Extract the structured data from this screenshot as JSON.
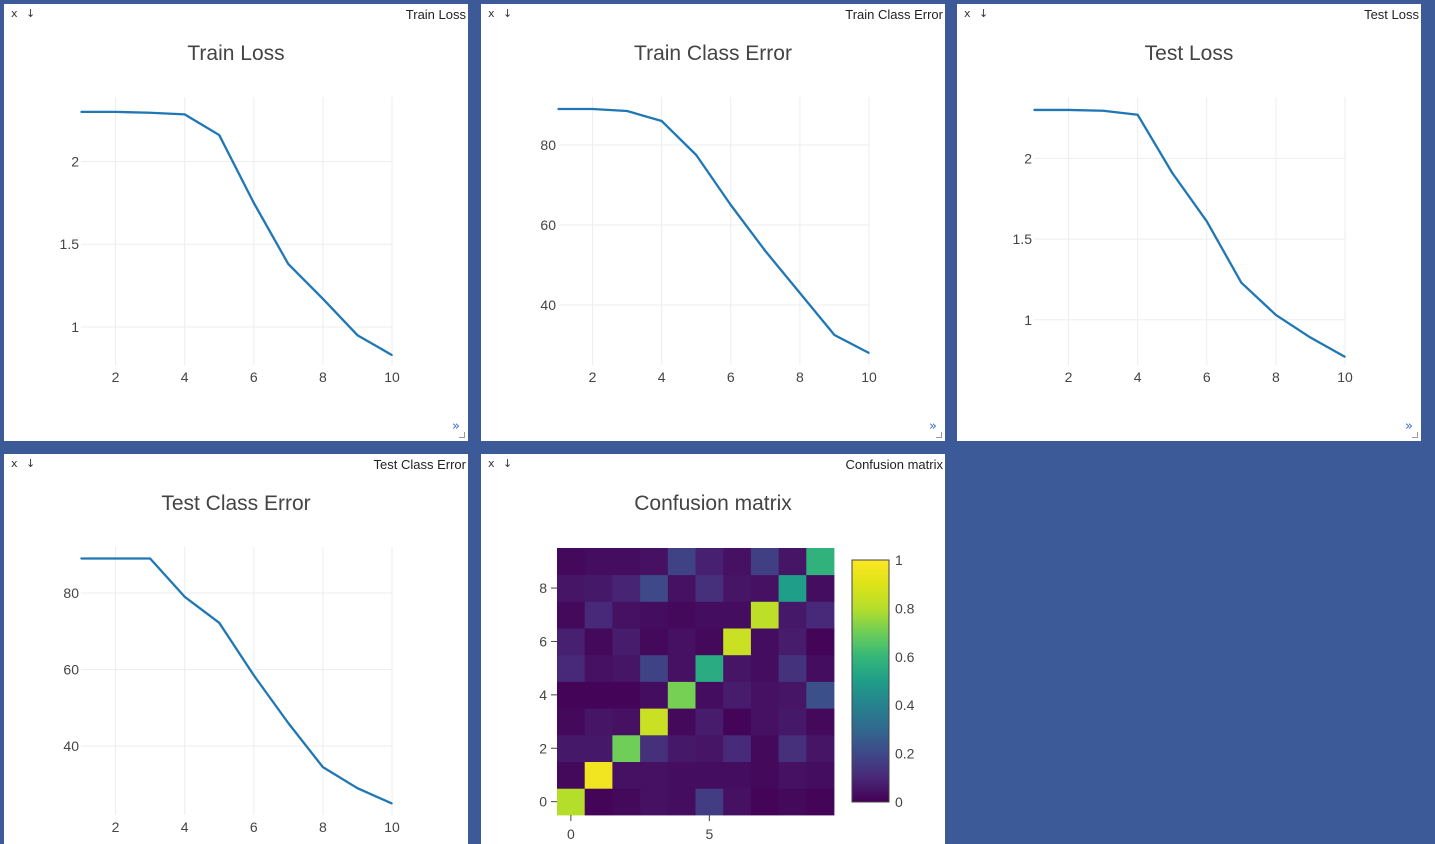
{
  "panes": [
    {
      "id": "train-loss",
      "label": "Train Loss",
      "close_glyph": "x",
      "download_glyph": "↓",
      "expand_glyph": "»",
      "chart_data": {
        "type": "line",
        "title": "Train Loss",
        "x": [
          1,
          2,
          3,
          4,
          5,
          6,
          7,
          8,
          9,
          10
        ],
        "series": [
          {
            "values": [
              2.3,
              2.3,
              2.295,
              2.285,
              2.16,
              1.75,
              1.38,
              1.17,
              0.95,
              0.83
            ]
          }
        ],
        "xlim": [
          1,
          10
        ],
        "ylim": [
          0.77,
          2.39
        ],
        "xticks": [
          2,
          4,
          6,
          8,
          10
        ],
        "yticks": [
          1,
          1.5,
          2
        ],
        "xtick_labels": [
          "2",
          "4",
          "6",
          "8",
          "10"
        ],
        "ytick_labels": [
          "1",
          "1.5",
          "2"
        ],
        "grid": true,
        "line_color": "#1f77b4"
      }
    },
    {
      "id": "train-class-error",
      "label": "Train Class Error",
      "close_glyph": "x",
      "download_glyph": "↓",
      "expand_glyph": "»",
      "chart_data": {
        "type": "line",
        "title": "Train Class Error",
        "x": [
          1,
          2,
          3,
          4,
          5,
          6,
          7,
          8,
          9,
          10
        ],
        "series": [
          {
            "values": [
              89,
              89,
              88.5,
              86,
              77.5,
              65,
              53.5,
              43,
              32.5,
              28
            ]
          }
        ],
        "xlim": [
          1,
          10
        ],
        "ylim": [
          25,
          92
        ],
        "xticks": [
          2,
          4,
          6,
          8,
          10
        ],
        "yticks": [
          40,
          60,
          80
        ],
        "xtick_labels": [
          "2",
          "4",
          "6",
          "8",
          "10"
        ],
        "ytick_labels": [
          "40",
          "60",
          "80"
        ],
        "grid": true,
        "line_color": "#1f77b4"
      }
    },
    {
      "id": "test-loss",
      "label": "Test Loss",
      "close_glyph": "x",
      "download_glyph": "↓",
      "expand_glyph": "»",
      "chart_data": {
        "type": "line",
        "title": "Test Loss",
        "x": [
          1,
          2,
          3,
          4,
          5,
          6,
          7,
          8,
          9,
          10
        ],
        "series": [
          {
            "values": [
              2.3,
              2.3,
              2.295,
              2.27,
              1.91,
              1.61,
              1.23,
              1.03,
              0.89,
              0.77
            ]
          }
        ],
        "xlim": [
          1,
          10
        ],
        "ylim": [
          0.72,
          2.38
        ],
        "xticks": [
          2,
          4,
          6,
          8,
          10
        ],
        "yticks": [
          1,
          1.5,
          2
        ],
        "xtick_labels": [
          "2",
          "4",
          "6",
          "8",
          "10"
        ],
        "ytick_labels": [
          "1",
          "1.5",
          "2"
        ],
        "grid": true,
        "line_color": "#1f77b4"
      }
    },
    {
      "id": "test-class-error",
      "label": "Test Class Error",
      "close_glyph": "x",
      "download_glyph": "↓",
      "expand_glyph": "»",
      "chart_data": {
        "type": "line",
        "title": "Test Class Error",
        "x": [
          1,
          2,
          3,
          4,
          5,
          6,
          7,
          8,
          9,
          10
        ],
        "series": [
          {
            "values": [
              89,
              89,
              89,
              79,
              72.2,
              58.5,
              46,
              34.5,
              29,
              25
            ]
          }
        ],
        "xlim": [
          1,
          10
        ],
        "ylim": [
          22,
          92
        ],
        "xticks": [
          2,
          4,
          6,
          8,
          10
        ],
        "yticks": [
          40,
          60,
          80
        ],
        "xtick_labels": [
          "2",
          "4",
          "6",
          "8",
          "10"
        ],
        "ytick_labels": [
          "40",
          "60",
          "80"
        ],
        "grid": true,
        "line_color": "#1f77b4"
      }
    },
    {
      "id": "confusion-matrix",
      "label": "Confusion matrix",
      "close_glyph": "x",
      "download_glyph": "↓",
      "expand_glyph": "»",
      "chart_data": {
        "type": "heatmap",
        "title": "Confusion matrix",
        "rows_bottom_to_top": [
          [
            0.8,
            0.01,
            0.02,
            0.04,
            0.03,
            0.16,
            0.04,
            0.01,
            0.02,
            0.01
          ],
          [
            0.02,
            0.96,
            0.04,
            0.04,
            0.03,
            0.03,
            0.03,
            0.02,
            0.04,
            0.03
          ],
          [
            0.06,
            0.06,
            0.7,
            0.12,
            0.06,
            0.05,
            0.11,
            0.02,
            0.12,
            0.05
          ],
          [
            0.02,
            0.05,
            0.04,
            0.85,
            0.02,
            0.07,
            0.01,
            0.04,
            0.06,
            0.02
          ],
          [
            0.01,
            0.01,
            0.01,
            0.03,
            0.71,
            0.03,
            0.07,
            0.04,
            0.05,
            0.22
          ],
          [
            0.1,
            0.04,
            0.05,
            0.18,
            0.04,
            0.55,
            0.05,
            0.03,
            0.13,
            0.03
          ],
          [
            0.08,
            0.02,
            0.07,
            0.02,
            0.04,
            0.02,
            0.85,
            0.03,
            0.07,
            0.01
          ],
          [
            0.02,
            0.1,
            0.04,
            0.03,
            0.02,
            0.03,
            0.03,
            0.82,
            0.06,
            0.1
          ],
          [
            0.05,
            0.06,
            0.09,
            0.2,
            0.04,
            0.12,
            0.05,
            0.04,
            0.5,
            0.03
          ],
          [
            0.02,
            0.03,
            0.03,
            0.04,
            0.18,
            0.08,
            0.04,
            0.17,
            0.05,
            0.58
          ]
        ],
        "xticks": [
          0,
          5
        ],
        "yticks": [
          0,
          2,
          4,
          6,
          8
        ],
        "xtick_labels": [
          "0",
          "5"
        ],
        "ytick_labels": [
          "0",
          "2",
          "4",
          "6",
          "8"
        ],
        "zlim": [
          0,
          1
        ],
        "colorbar_ticks": [
          0,
          0.2,
          0.4,
          0.6,
          0.8,
          1
        ],
        "colorbar_labels": [
          "0",
          "0.2",
          "0.4",
          "0.6",
          "0.8",
          "1"
        ],
        "colorscale": "viridis"
      }
    }
  ]
}
